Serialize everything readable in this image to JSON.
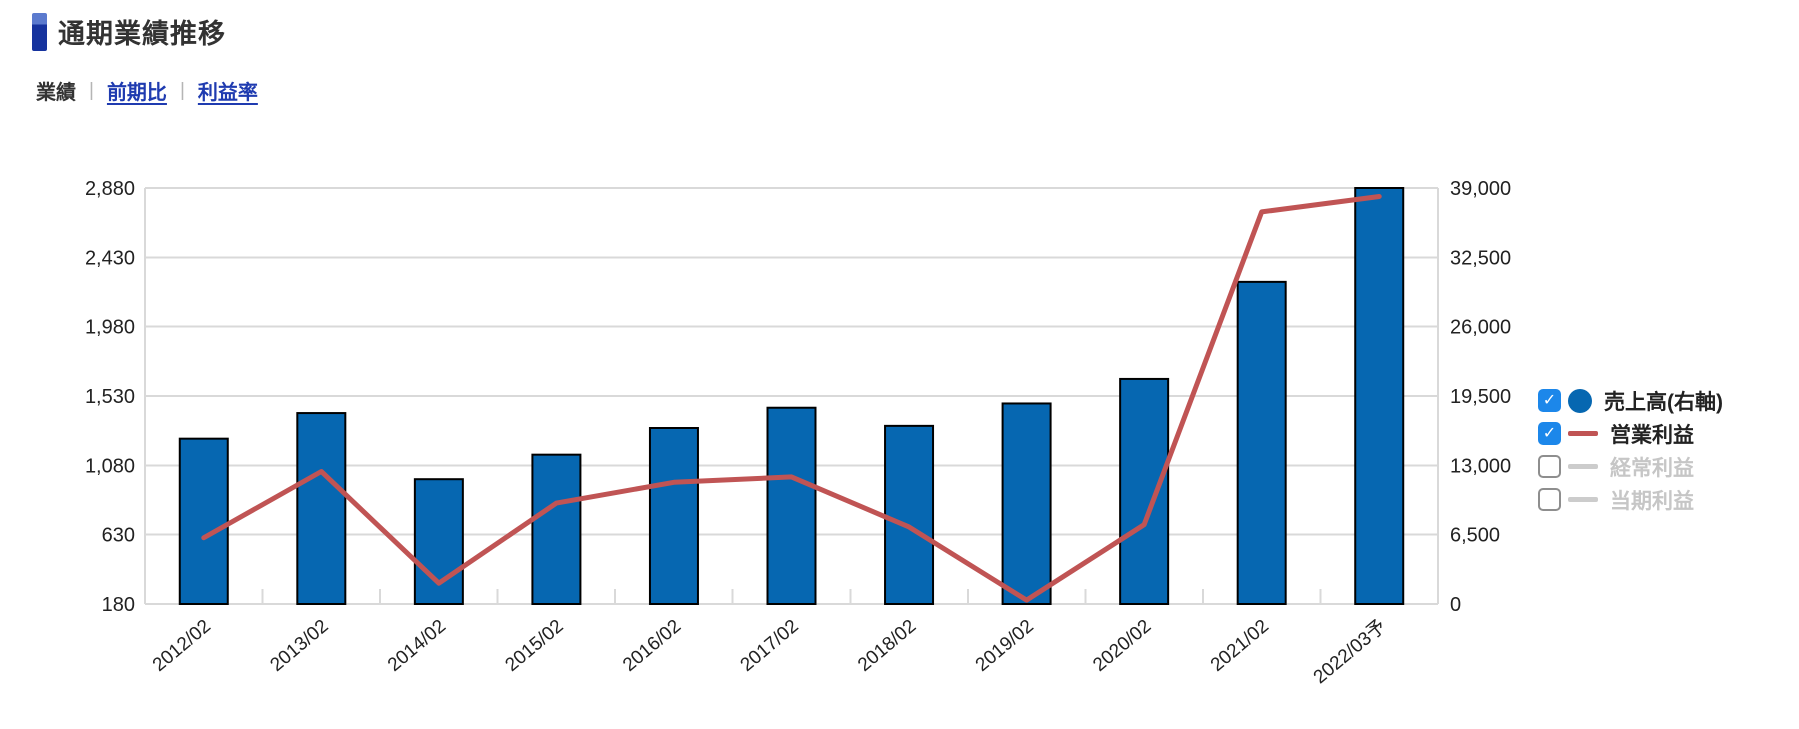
{
  "ui": {
    "title": "通期業績推移",
    "tabs": [
      {
        "label": "業績",
        "active": true
      },
      {
        "label": "前期比",
        "active": false
      },
      {
        "label": "利益率",
        "active": false
      }
    ],
    "tab_separator": "|",
    "check_glyph": "✓",
    "colors": {
      "accent_dark_blue": "#16339e",
      "accent_light_blue": "#5b7ace",
      "link_blue": "#1f3bb0",
      "bar_fill": "#0667b1",
      "line_red": "#c05454",
      "checkbox_blue": "#1c87ea",
      "grid_gray": "#d9d9d9",
      "disabled_gray": "#c6c6c6",
      "axis_text": "#222222"
    }
  },
  "chart_data": {
    "type": "bar",
    "subtype": "bar+line combo, dual axis",
    "title": "通期業績推移",
    "categories": [
      "2012/02",
      "2013/02",
      "2014/02",
      "2015/02",
      "2016/02",
      "2017/02",
      "2018/02",
      "2019/02",
      "2020/02",
      "2021/02",
      "2022/03予"
    ],
    "series": [
      {
        "name": "売上高(右軸)",
        "type": "bar",
        "axis": "right",
        "checked": true,
        "color": "#0667b1",
        "values": [
          15500,
          17900,
          11700,
          14000,
          16500,
          18400,
          16700,
          18800,
          21100,
          30200,
          39000
        ]
      },
      {
        "name": "営業利益",
        "type": "line",
        "axis": "left",
        "checked": true,
        "color": "#c05454",
        "values": [
          610,
          1040,
          315,
          835,
          970,
          1005,
          680,
          205,
          695,
          2725,
          2825
        ]
      },
      {
        "name": "経常利益",
        "type": "line",
        "axis": "left",
        "checked": false,
        "color": "#cccccc",
        "values": null
      },
      {
        "name": "当期利益",
        "type": "line",
        "axis": "left",
        "checked": false,
        "color": "#cccccc",
        "values": null
      }
    ],
    "left_axis": {
      "min": 180,
      "max": 2880,
      "ticks": [
        180,
        630,
        1080,
        1530,
        1980,
        2430,
        2880
      ]
    },
    "right_axis": {
      "min": 0,
      "max": 39000,
      "ticks": [
        0,
        6500,
        13000,
        19500,
        26000,
        32500,
        39000
      ]
    },
    "grid": true,
    "legend_position": "right"
  }
}
